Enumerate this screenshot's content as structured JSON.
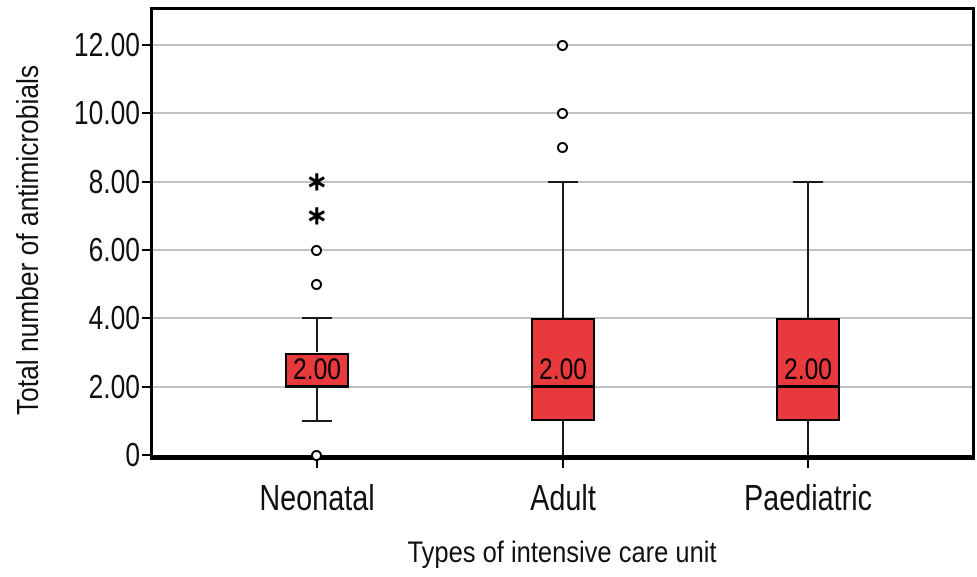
{
  "chart_data": {
    "type": "boxplot",
    "title": "",
    "xlabel": "Types of intensive care unit",
    "ylabel": "Total number of antimicrobials",
    "ylim": [
      0,
      13
    ],
    "grid": "horizontal",
    "gridlines_at": [
      2,
      4,
      6,
      8,
      10,
      12
    ],
    "yticks": [
      {
        "value": 0,
        "label": "0"
      },
      {
        "value": 2,
        "label": "2.00"
      },
      {
        "value": 4,
        "label": "4.00"
      },
      {
        "value": 6,
        "label": "6.00"
      },
      {
        "value": 8,
        "label": "8.00"
      },
      {
        "value": 10,
        "label": "10.00"
      },
      {
        "value": 12,
        "label": "12.00"
      }
    ],
    "categories": [
      "Neonatal",
      "Adult",
      "Paediatric"
    ],
    "series": [
      {
        "category": "Neonatal",
        "whisker_low": 1,
        "q1": 2,
        "median": 2,
        "q3": 3,
        "whisker_high": 4,
        "median_label": "2.00",
        "outliers": [
          0,
          5,
          6
        ],
        "extremes": [
          7,
          8
        ]
      },
      {
        "category": "Adult",
        "whisker_low": 0,
        "q1": 1,
        "median": 2,
        "q3": 4,
        "whisker_high": 8,
        "median_label": "2.00",
        "outliers": [
          9,
          10,
          12
        ],
        "extremes": []
      },
      {
        "category": "Paediatric",
        "whisker_low": 0,
        "q1": 1,
        "median": 2,
        "q3": 4,
        "whisker_high": 8,
        "median_label": "2.00",
        "outliers": [],
        "extremes": []
      }
    ],
    "outlier_marker": "circle",
    "extreme_marker": "asterisk",
    "colors": {
      "box_fill": "#e8393c",
      "box_border": "#000000",
      "median_line": "#000000",
      "whisker": "#1a1a1a",
      "gridline": "#c2c2c2",
      "axis": "#000000",
      "text": "#111111",
      "background": "#ffffff"
    }
  }
}
